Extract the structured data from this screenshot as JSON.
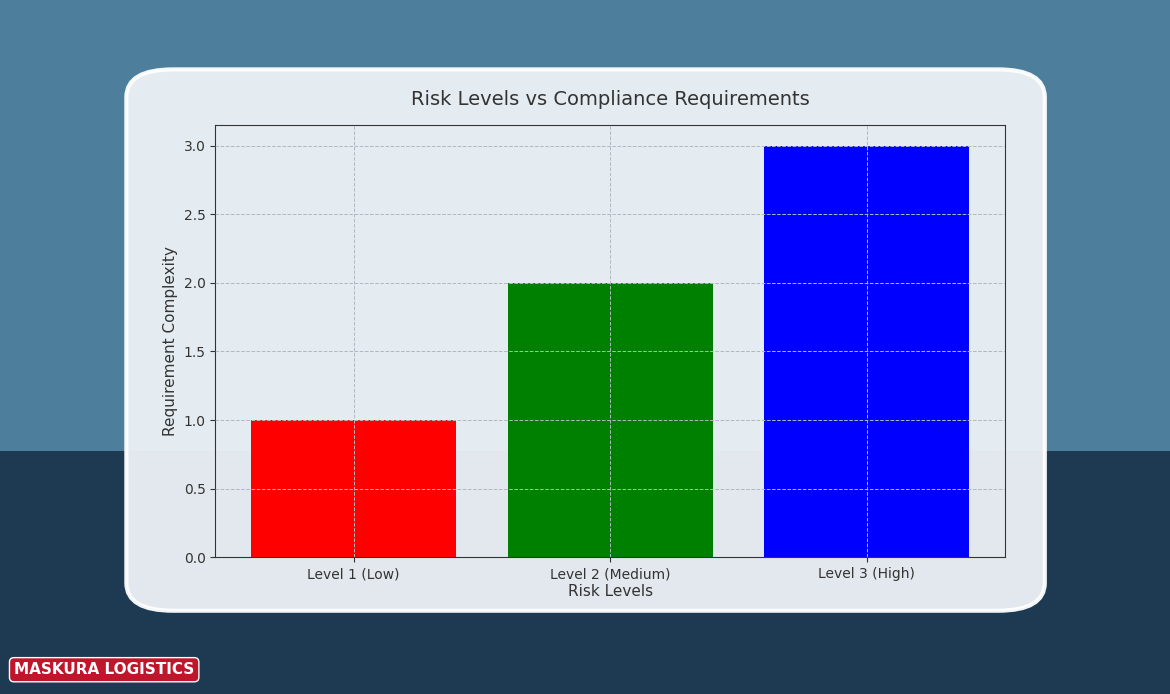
{
  "chart_data": {
    "type": "bar",
    "title": "Risk Levels vs Compliance Requirements",
    "x_label": "Risk Levels",
    "y_label": "Requirement Complexity",
    "categories": [
      "Level 1 (Low)",
      "Level 2 (Medium)",
      "Level 3 (High)"
    ],
    "values": [
      1,
      2,
      3
    ],
    "colors": [
      "#ff0000",
      "#008000",
      "#0000ff"
    ],
    "ylim": [
      0,
      3.15
    ],
    "yticks": [
      {
        "value": 0,
        "label": "0.0"
      },
      {
        "value": 0.5,
        "label": "0.5"
      },
      {
        "value": 1,
        "label": "1.0"
      },
      {
        "value": 1.5,
        "label": "1.5"
      },
      {
        "value": 2,
        "label": "2.0"
      },
      {
        "value": 2.5,
        "label": "2.5"
      },
      {
        "value": 3,
        "label": "3.0"
      }
    ],
    "grid": true
  },
  "logo": "MASKURA LOGISTICS"
}
